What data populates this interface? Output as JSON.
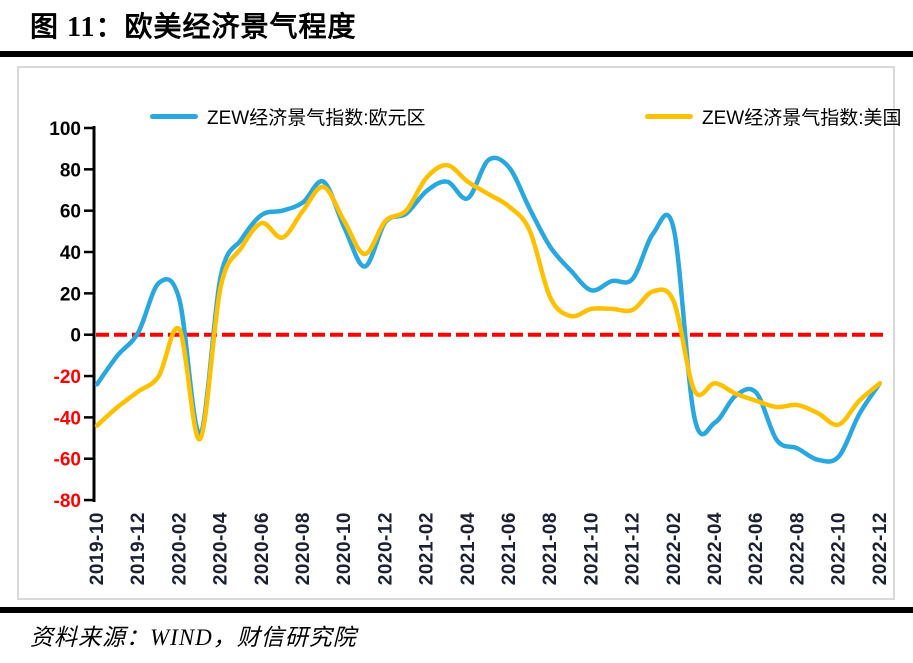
{
  "title": "图 11：欧美经济景气程度",
  "source": "资料来源：WIND，财信研究院",
  "colors": {
    "eurozone_line": "#29a8e0",
    "us_line": "#ffc000",
    "zero_line": "#ff0000",
    "negative_tick": "#ff0000",
    "axis": "#000000",
    "x_tick_label": "#1b2133",
    "panel_border": "#d9d9d9",
    "divider": "#000000"
  },
  "chart_data": {
    "type": "line",
    "title": "欧美经济景气程度",
    "categories": [
      "2019-10",
      "2019-11",
      "2019-12",
      "2020-01",
      "2020-02",
      "2020-03",
      "2020-04",
      "2020-05",
      "2020-06",
      "2020-07",
      "2020-08",
      "2020-09",
      "2020-10",
      "2020-11",
      "2020-12",
      "2021-01",
      "2021-02",
      "2021-03",
      "2021-04",
      "2021-05",
      "2021-06",
      "2021-07",
      "2021-08",
      "2021-09",
      "2021-10",
      "2021-11",
      "2021-12",
      "2022-01",
      "2022-02",
      "2022-03",
      "2022-04",
      "2022-05",
      "2022-06",
      "2022-07",
      "2022-08",
      "2022-09",
      "2022-10",
      "2022-11",
      "2022-12"
    ],
    "series": [
      {
        "name": "ZEW经济景气指数:欧元区",
        "color": "#29a8e0",
        "values": [
          -24,
          -10,
          1,
          25,
          17,
          -48,
          28,
          46,
          58,
          60,
          64,
          74,
          52,
          33,
          54.5,
          58.5,
          69.5,
          74,
          66,
          84.5,
          81,
          61,
          42.5,
          31,
          21.5,
          26,
          27,
          49,
          51,
          -40,
          -42.5,
          -29.5,
          -28,
          -51,
          -55,
          -60.5,
          -59,
          -38.5,
          -23.5
        ]
      },
      {
        "name": "ZEW经济景气指数:美国",
        "color": "#ffc000",
        "values": [
          -44,
          -35,
          -27.5,
          -20,
          2.5,
          -50.5,
          23,
          42,
          54,
          47,
          60,
          71.5,
          55,
          39,
          55,
          60,
          76,
          82,
          74,
          68,
          62,
          50.5,
          18,
          9,
          12.5,
          12.5,
          12,
          21,
          16,
          -27,
          -23.5,
          -28.5,
          -32,
          -35,
          -34,
          -38,
          -43.5,
          -32,
          -23.5
        ]
      }
    ],
    "ylim": [
      -80,
      100
    ],
    "yticks": [
      100,
      80,
      60,
      40,
      20,
      0,
      -20,
      -40,
      -60,
      -80
    ],
    "x_tick_every": 2,
    "zero_line": {
      "value": 0,
      "color": "#ff0000",
      "style": "dashed"
    },
    "grid": false,
    "legend_position": "top",
    "smooth": true
  }
}
